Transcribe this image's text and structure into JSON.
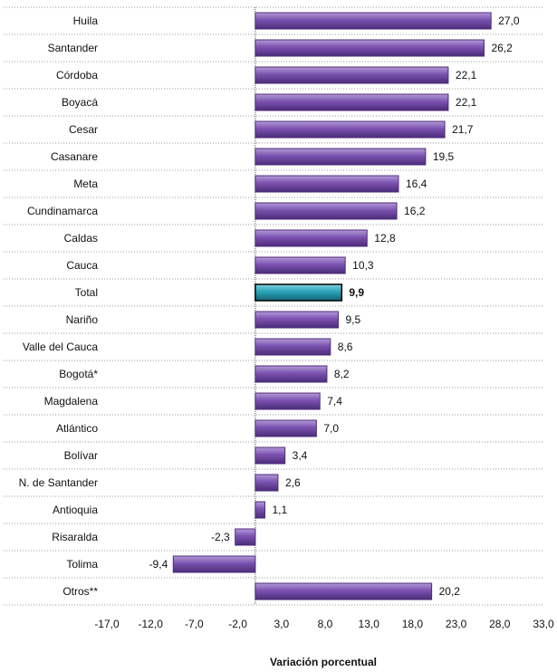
{
  "chart_data": {
    "type": "bar",
    "orientation": "horizontal",
    "xlabel": "Variación porcentual",
    "xlim": [
      -17.0,
      33.0
    ],
    "xticks": [
      "-17,0",
      "-12,0",
      "-7,0",
      "-2,0",
      "3,0",
      "8,0",
      "13,0",
      "18,0",
      "23,0",
      "28,0",
      "33,0"
    ],
    "gridlines": "horizontal dotted separators",
    "categories": [
      "Huila",
      "Santander",
      "Córdoba",
      "Boyacá",
      "Cesar",
      "Casanare",
      "Meta",
      "Cundinamarca",
      "Caldas",
      "Cauca",
      "Total",
      "Nariño",
      "Valle del Cauca",
      "Bogotá*",
      "Magdalena",
      "Atlántico",
      "Bolívar",
      "N. de Santander",
      "Antioquia",
      "Risaralda",
      "Tolima",
      "Otros**"
    ],
    "values": [
      27.0,
      26.2,
      22.1,
      22.1,
      21.7,
      19.5,
      16.4,
      16.2,
      12.8,
      10.3,
      9.9,
      9.5,
      8.6,
      8.2,
      7.4,
      7.0,
      3.4,
      2.6,
      1.1,
      -2.3,
      -9.4,
      20.2
    ],
    "value_labels": [
      "27,0",
      "26,2",
      "22,1",
      "22,1",
      "21,7",
      "19,5",
      "16,4",
      "16,2",
      "12,8",
      "10,3",
      "9,9",
      "9,5",
      "8,6",
      "8,2",
      "7,4",
      "7,0",
      "3,4",
      "2,6",
      "1,1",
      "-2,3",
      "-9,4",
      "20,2"
    ],
    "highlight_category": "Total",
    "colors": {
      "bar": "#7b52b0",
      "bar_light": "#b39ad8",
      "bar_dark": "#4c2c7a",
      "highlight": "#2aa3b8",
      "highlight_light": "#7fd3e0",
      "highlight_dark": "#146474"
    }
  }
}
